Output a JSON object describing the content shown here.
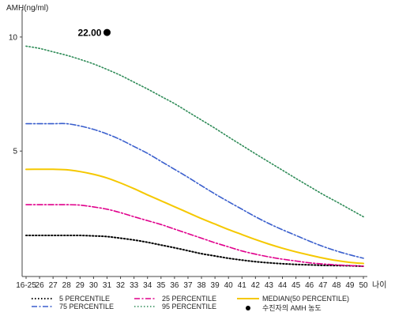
{
  "chart_data": {
    "type": "line",
    "ylabel": "AMH(ng/ml)",
    "xlabel": "나이",
    "ylim": [
      -0.5,
      11
    ],
    "categories": [
      "16-25",
      "26",
      "27",
      "28",
      "29",
      "30",
      "31",
      "32",
      "33",
      "34",
      "35",
      "36",
      "37",
      "38",
      "39",
      "40",
      "41",
      "42",
      "43",
      "44",
      "45",
      "46",
      "47",
      "48",
      "49",
      "50"
    ],
    "yticks": [
      {
        "value": 10,
        "label": "10"
      },
      {
        "value": 5,
        "label": "5"
      }
    ],
    "series": [
      {
        "key": "p5",
        "name": "5 PERCENTILE",
        "color": "#000000",
        "dash": "1.5,2.5",
        "width": 2,
        "values": [
          1.3,
          1.3,
          1.3,
          1.3,
          1.3,
          1.28,
          1.25,
          1.18,
          1.1,
          1.0,
          0.88,
          0.76,
          0.63,
          0.5,
          0.4,
          0.3,
          0.22,
          0.15,
          0.1,
          0.06,
          0.03,
          0.01,
          -0.01,
          -0.02,
          -0.03,
          -0.05
        ]
      },
      {
        "key": "p25",
        "name": "25 PERCENTILE",
        "color": "#e0008c",
        "dash": "7,2.5,2,2.5",
        "width": 1.6,
        "values": [
          2.65,
          2.65,
          2.65,
          2.65,
          2.63,
          2.55,
          2.45,
          2.3,
          2.12,
          1.95,
          1.78,
          1.58,
          1.38,
          1.18,
          0.98,
          0.8,
          0.62,
          0.48,
          0.36,
          0.26,
          0.18,
          0.1,
          0.05,
          0.01,
          -0.02,
          -0.05
        ]
      },
      {
        "key": "p50",
        "name": "MEDIAN(50 PERCENTILE)",
        "color": "#f5c800",
        "dash": "",
        "width": 2,
        "values": [
          4.2,
          4.2,
          4.2,
          4.18,
          4.1,
          3.98,
          3.82,
          3.6,
          3.35,
          3.08,
          2.82,
          2.56,
          2.3,
          2.04,
          1.8,
          1.56,
          1.34,
          1.12,
          0.92,
          0.74,
          0.58,
          0.44,
          0.31,
          0.2,
          0.12,
          0.07
        ]
      },
      {
        "key": "p75",
        "name": "75 PERCENTILE",
        "color": "#3a5fcd",
        "dash": "7,2.5,2,2.5",
        "width": 1.6,
        "values": [
          6.2,
          6.2,
          6.2,
          6.2,
          6.1,
          5.95,
          5.75,
          5.5,
          5.2,
          4.9,
          4.55,
          4.2,
          3.85,
          3.48,
          3.12,
          2.78,
          2.45,
          2.12,
          1.82,
          1.55,
          1.3,
          1.05,
          0.82,
          0.62,
          0.45,
          0.3
        ]
      },
      {
        "key": "p95",
        "name": "95 PERCENTILE",
        "color": "#2e8b57",
        "dash": "1.5,2.5",
        "width": 1.6,
        "values": [
          9.6,
          9.5,
          9.35,
          9.2,
          9.02,
          8.82,
          8.58,
          8.32,
          8.02,
          7.72,
          7.4,
          7.08,
          6.72,
          6.36,
          6.0,
          5.62,
          5.25,
          4.88,
          4.52,
          4.16,
          3.8,
          3.45,
          3.1,
          2.78,
          2.45,
          2.12
        ]
      }
    ],
    "point": {
      "name": "수진자의 AMH 농도",
      "x": "31",
      "y": 10.2,
      "label": "22.00",
      "color": "#000000"
    },
    "legend": {
      "placement": "bottom"
    }
  }
}
